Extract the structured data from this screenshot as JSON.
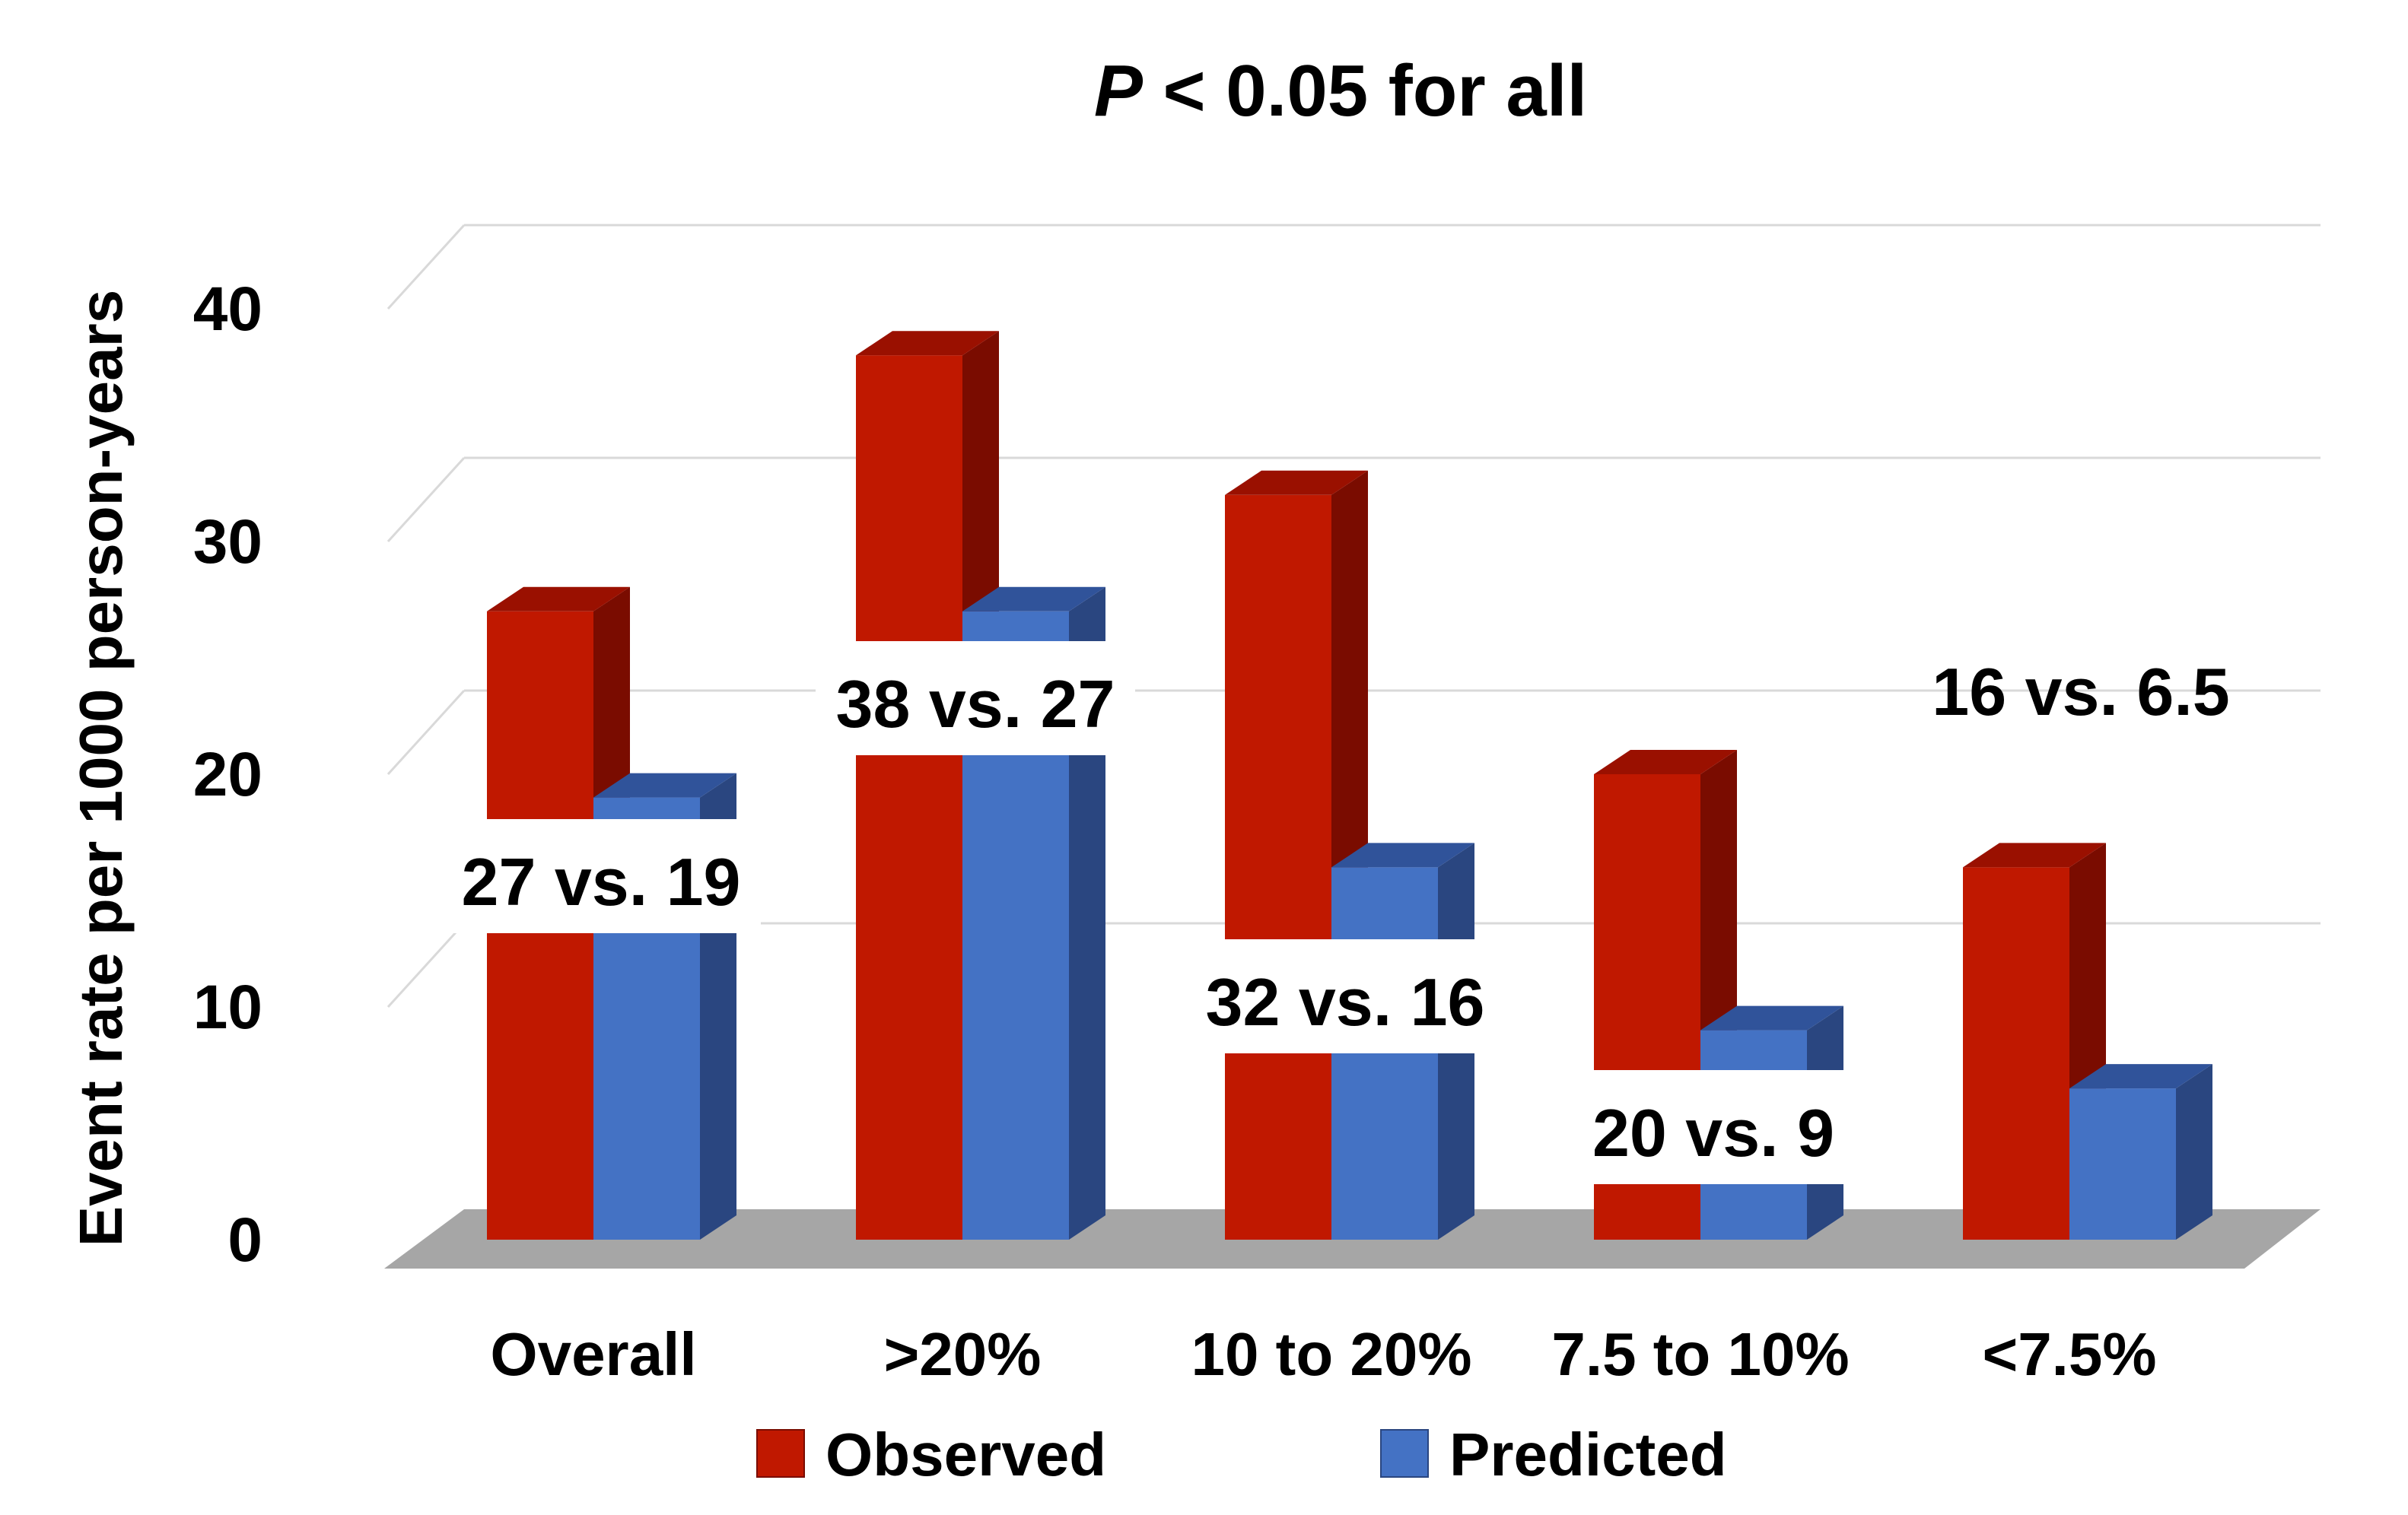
{
  "chart_data": {
    "type": "bar",
    "style": "3d-clustered",
    "title_italic": "P",
    "title_rest": " < 0.05 for all",
    "ylabel": "Event rate per 1000 person-years",
    "xlabel": "",
    "ylim": [
      0,
      40
    ],
    "yticks": [
      0,
      10,
      20,
      30,
      40
    ],
    "grid": true,
    "categories": [
      "Overall",
      ">20%",
      "10 to 20%",
      "7.5 to 10%",
      "<7.5%"
    ],
    "series": [
      {
        "name": "Observed",
        "color": "#C01800",
        "top_color": "#9A1000",
        "side_color": "#7A0C00",
        "values": [
          27,
          38,
          32,
          20,
          16
        ]
      },
      {
        "name": "Predicted",
        "color": "#4472C4",
        "top_color": "#30539A",
        "side_color": "#2A4680",
        "values": [
          19,
          27,
          16,
          9,
          6.5
        ]
      }
    ],
    "annotations": [
      "27 vs. 19",
      "38 vs. 27",
      "32 vs. 16",
      "20 vs. 9",
      "16 vs. 6.5"
    ],
    "legend": {
      "position": "bottom",
      "items": [
        "Observed",
        "Predicted"
      ]
    },
    "floor_color": "#A6A6A6",
    "grid_color": "#D9D9D9"
  }
}
